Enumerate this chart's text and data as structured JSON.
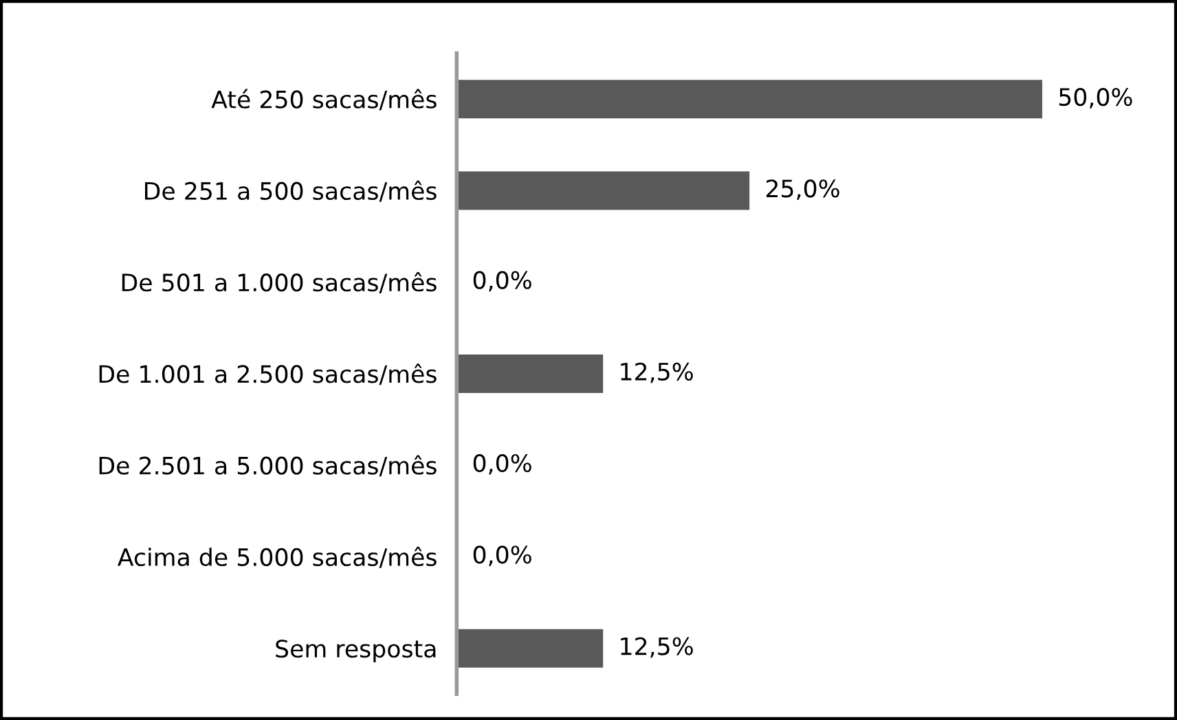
{
  "chart_data": {
    "type": "bar",
    "orientation": "horizontal",
    "categories": [
      "Até 250 sacas/mês",
      "De 251 a 500 sacas/mês",
      "De 501 a 1.000 sacas/mês",
      "De 1.001 a 2.500 sacas/mês",
      "De 2.501 a 5.000 sacas/mês",
      "Acima de 5.000 sacas/mês",
      "Sem resposta"
    ],
    "values": [
      50,
      25,
      0,
      12.5,
      0,
      0,
      12.5
    ],
    "value_labels": [
      "50,0%",
      "25,0%",
      "0,0%",
      "12,5%",
      "0,0%",
      "0,0%",
      "12,5%"
    ],
    "color": "#595959",
    "tick_labels": "y",
    "grid": false,
    "legend": false
  }
}
